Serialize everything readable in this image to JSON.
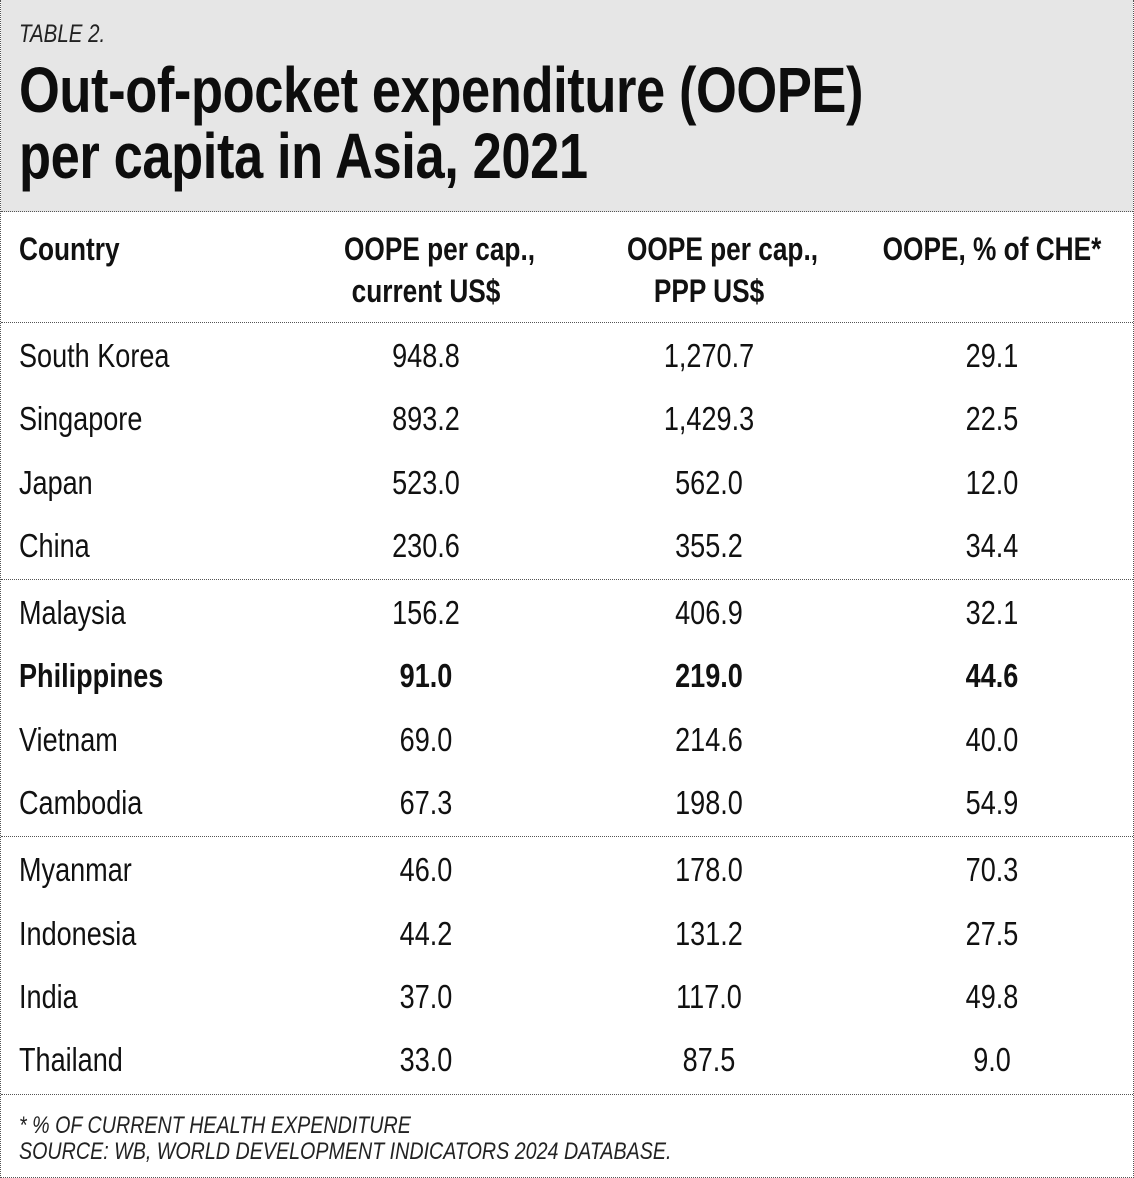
{
  "table_label": "TABLE 2.",
  "title_line1": "Out-of-pocket expenditure (OOPE)",
  "title_line2": "per capita in Asia, 2021",
  "columns": {
    "country": "Country",
    "usd_line1": "OOPE per cap.,",
    "usd_line2": "current US$",
    "ppp_line1": "OOPE per cap.,",
    "ppp_line2": "PPP US$",
    "pct": "OOPE, % of CHE*"
  },
  "groups": [
    [
      {
        "country": "South Korea",
        "usd": "948.8",
        "ppp": "1,270.7",
        "pct": "29.1",
        "bold": false
      },
      {
        "country": "Singapore",
        "usd": "893.2",
        "ppp": "1,429.3",
        "pct": "22.5",
        "bold": false
      },
      {
        "country": "Japan",
        "usd": "523.0",
        "ppp": "562.0",
        "pct": "12.0",
        "bold": false
      },
      {
        "country": "China",
        "usd": "230.6",
        "ppp": "355.2",
        "pct": "34.4",
        "bold": false
      }
    ],
    [
      {
        "country": "Malaysia",
        "usd": "156.2",
        "ppp": "406.9",
        "pct": "32.1",
        "bold": false
      },
      {
        "country": "Philippines",
        "usd": "91.0",
        "ppp": "219.0",
        "pct": "44.6",
        "bold": true
      },
      {
        "country": "Vietnam",
        "usd": "69.0",
        "ppp": "214.6",
        "pct": "40.0",
        "bold": false
      },
      {
        "country": "Cambodia",
        "usd": "67.3",
        "ppp": "198.0",
        "pct": "54.9",
        "bold": false
      }
    ],
    [
      {
        "country": "Myanmar",
        "usd": "46.0",
        "ppp": "178.0",
        "pct": "70.3",
        "bold": false
      },
      {
        "country": "Indonesia",
        "usd": "44.2",
        "ppp": "131.2",
        "pct": "27.5",
        "bold": false
      },
      {
        "country": "India",
        "usd": "37.0",
        "ppp": "117.0",
        "pct": "49.8",
        "bold": false
      },
      {
        "country": "Thailand",
        "usd": "33.0",
        "ppp": "87.5",
        "pct": "9.0",
        "bold": false
      }
    ]
  ],
  "footnote": "* % OF CURRENT HEALTH EXPENDITURE",
  "source": "SOURCE: WB, WORLD DEVELOPMENT INDICATORS 2024 DATABASE.",
  "chart_data": {
    "type": "table",
    "title": "Out-of-pocket expenditure (OOPE) per capita in Asia, 2021",
    "headers": [
      "Country",
      "OOPE per cap., current US$",
      "OOPE per cap., PPP US$",
      "OOPE, % of CHE*"
    ],
    "rows": [
      [
        "South Korea",
        948.8,
        1270.7,
        29.1
      ],
      [
        "Singapore",
        893.2,
        1429.3,
        22.5
      ],
      [
        "Japan",
        523.0,
        562.0,
        12.0
      ],
      [
        "China",
        230.6,
        355.2,
        34.4
      ],
      [
        "Malaysia",
        156.2,
        406.9,
        32.1
      ],
      [
        "Philippines",
        91.0,
        219.0,
        44.6
      ],
      [
        "Vietnam",
        69.0,
        214.6,
        40.0
      ],
      [
        "Cambodia",
        67.3,
        198.0,
        54.9
      ],
      [
        "Myanmar",
        46.0,
        178.0,
        70.3
      ],
      [
        "Indonesia",
        44.2,
        131.2,
        27.5
      ],
      [
        "India",
        37.0,
        117.0,
        49.8
      ],
      [
        "Thailand",
        33.0,
        87.5,
        9.0
      ]
    ]
  }
}
